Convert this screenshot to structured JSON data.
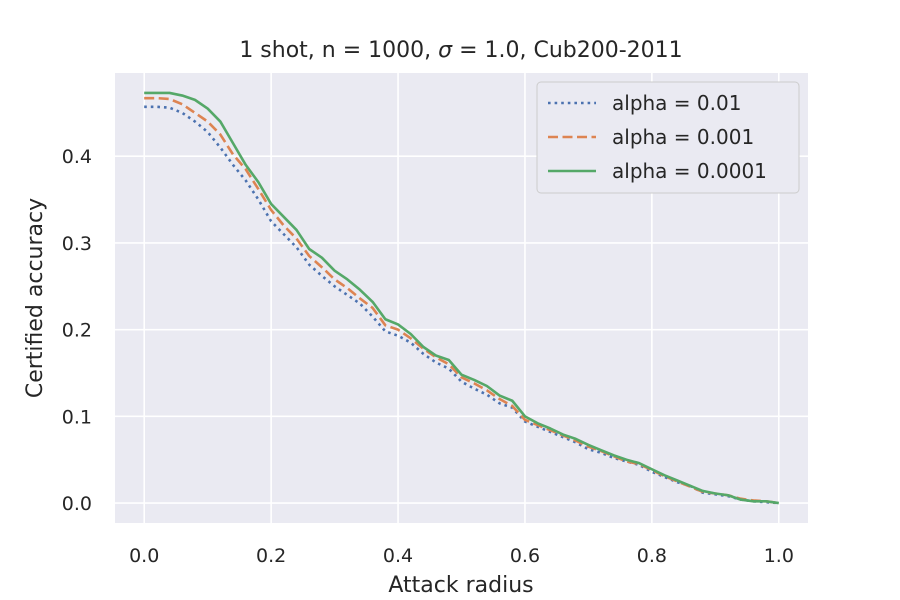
{
  "chart_data": {
    "type": "line",
    "title_parts": {
      "prefix": "1 shot, n = 1000, ",
      "symbol": "σ",
      "suffix": " = 1.0, Cub200-2011"
    },
    "xlabel": "Attack radius",
    "ylabel": "Certified accuracy",
    "xlim": [
      -0.046,
      1.046
    ],
    "ylim": [
      -0.023,
      0.496
    ],
    "xticks": [
      0.0,
      0.2,
      0.4,
      0.6,
      0.8,
      1.0
    ],
    "xtick_labels": [
      "0.0",
      "0.2",
      "0.4",
      "0.6",
      "0.8",
      "1.0"
    ],
    "yticks": [
      0.0,
      0.1,
      0.2,
      0.3,
      0.4
    ],
    "ytick_labels": [
      "0.0",
      "0.1",
      "0.2",
      "0.3",
      "0.4"
    ],
    "grid": true,
    "legend_position": "top-right",
    "x": [
      0.0,
      0.02,
      0.04,
      0.06,
      0.08,
      0.1,
      0.12,
      0.14,
      0.16,
      0.18,
      0.2,
      0.22,
      0.24,
      0.26,
      0.28,
      0.3,
      0.32,
      0.34,
      0.36,
      0.38,
      0.4,
      0.42,
      0.44,
      0.46,
      0.48,
      0.5,
      0.52,
      0.54,
      0.56,
      0.58,
      0.6,
      0.62,
      0.64,
      0.66,
      0.68,
      0.7,
      0.72,
      0.74,
      0.76,
      0.78,
      0.8,
      0.82,
      0.84,
      0.86,
      0.88,
      0.9,
      0.92,
      0.94,
      0.96,
      0.98,
      1.0
    ],
    "series": [
      {
        "name": "alpha = 0.01",
        "color": "#4c72b0",
        "style": "dotted",
        "values": [
          0.457,
          0.457,
          0.456,
          0.45,
          0.44,
          0.428,
          0.41,
          0.39,
          0.372,
          0.35,
          0.325,
          0.31,
          0.295,
          0.275,
          0.262,
          0.25,
          0.24,
          0.23,
          0.215,
          0.198,
          0.193,
          0.185,
          0.172,
          0.162,
          0.155,
          0.14,
          0.132,
          0.125,
          0.115,
          0.11,
          0.094,
          0.088,
          0.082,
          0.076,
          0.07,
          0.062,
          0.058,
          0.052,
          0.048,
          0.044,
          0.036,
          0.03,
          0.024,
          0.02,
          0.012,
          0.01,
          0.008,
          0.004,
          0.002,
          0.001,
          0.0
        ]
      },
      {
        "name": "alpha = 0.001",
        "color": "#dd8452",
        "style": "dashed",
        "values": [
          0.467,
          0.467,
          0.466,
          0.46,
          0.45,
          0.44,
          0.425,
          0.402,
          0.385,
          0.362,
          0.338,
          0.32,
          0.305,
          0.285,
          0.272,
          0.258,
          0.248,
          0.236,
          0.225,
          0.205,
          0.2,
          0.19,
          0.178,
          0.168,
          0.16,
          0.145,
          0.138,
          0.13,
          0.12,
          0.112,
          0.096,
          0.09,
          0.084,
          0.078,
          0.072,
          0.065,
          0.06,
          0.054,
          0.048,
          0.045,
          0.038,
          0.031,
          0.025,
          0.019,
          0.013,
          0.011,
          0.009,
          0.005,
          0.003,
          0.002,
          0.0
        ]
      },
      {
        "name": "alpha = 0.0001",
        "color": "#55a868",
        "style": "solid",
        "values": [
          0.473,
          0.473,
          0.473,
          0.47,
          0.465,
          0.455,
          0.44,
          0.415,
          0.39,
          0.37,
          0.345,
          0.33,
          0.315,
          0.293,
          0.283,
          0.268,
          0.258,
          0.246,
          0.232,
          0.212,
          0.206,
          0.195,
          0.18,
          0.17,
          0.165,
          0.148,
          0.142,
          0.135,
          0.124,
          0.118,
          0.1,
          0.092,
          0.086,
          0.079,
          0.074,
          0.067,
          0.061,
          0.055,
          0.05,
          0.046,
          0.039,
          0.032,
          0.026,
          0.02,
          0.014,
          0.011,
          0.009,
          0.004,
          0.002,
          0.002,
          0.0
        ]
      }
    ]
  }
}
